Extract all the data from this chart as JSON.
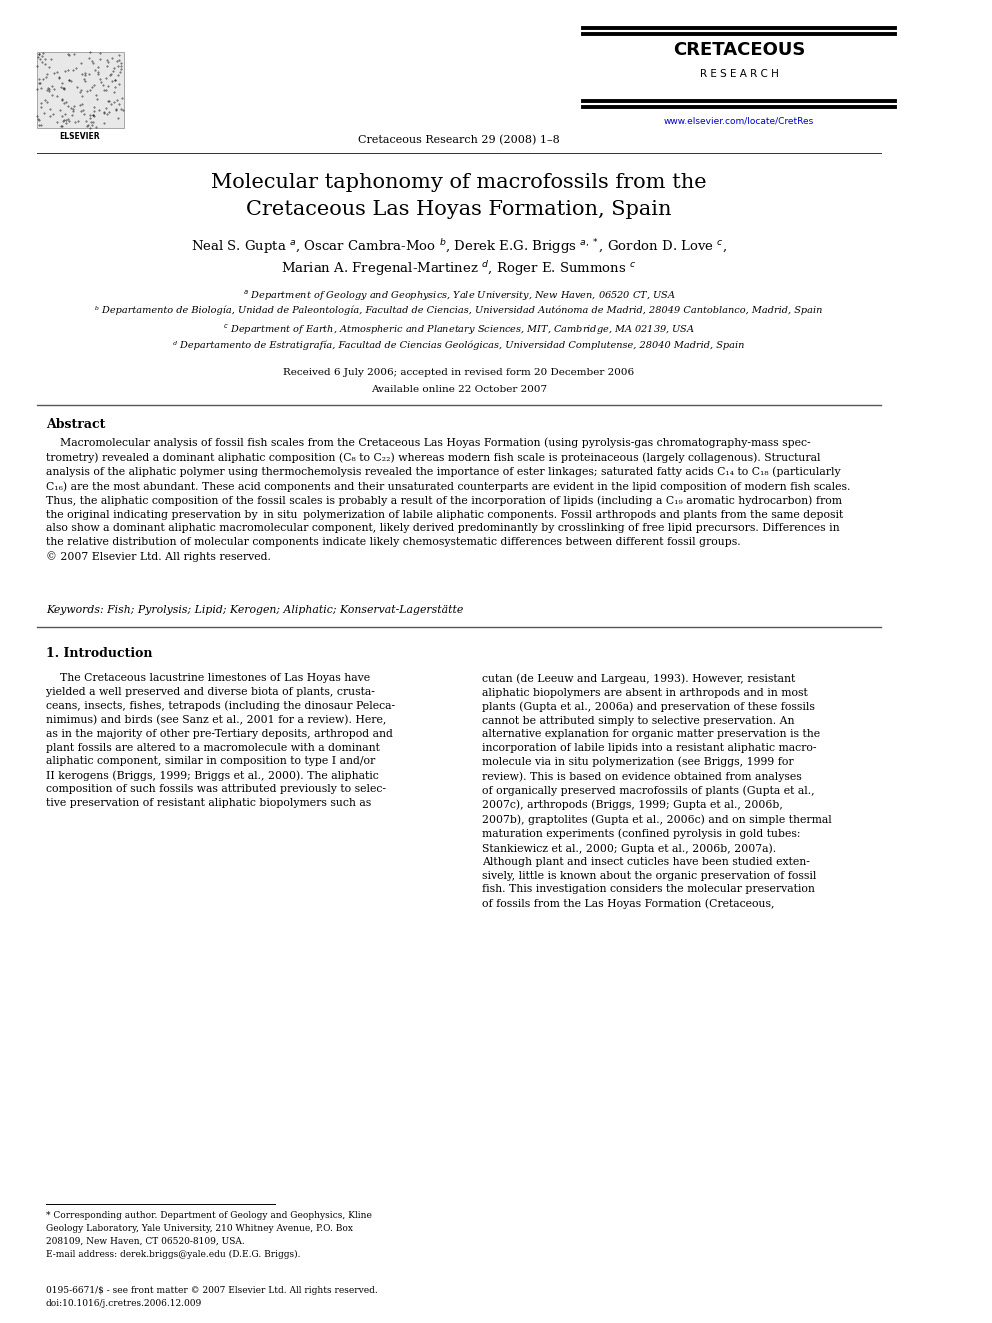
{
  "bg_color": "#ffffff",
  "page_width": 9.92,
  "page_height": 13.23,
  "journal_header_center": "Cretaceous Research 29 (2008) 1–8",
  "journal_url": "www.elsevier.com/locate/CretRes",
  "journal_name_line1": "CRETACEOUS",
  "journal_name_line2": "R E S E A R C H",
  "title_line1": "Molecular taphonomy of macrofossils from the",
  "title_line2": "Cretaceous Las Hoyas Formation, Spain",
  "received": "Received 6 July 2006; accepted in revised form 20 December 2006",
  "available": "Available online 22 October 2007",
  "abstract_title": "Abstract",
  "keywords": "Keywords: Fish; Pyrolysis; Lipid; Kerogen; Aliphatic; Konservat-Lagerstätte",
  "intro_title": "1. Introduction",
  "issn": "0195-6671/$ - see front matter © 2007 Elsevier Ltd. All rights reserved.",
  "doi": "doi:10.1016/j.cretres.2006.12.009"
}
